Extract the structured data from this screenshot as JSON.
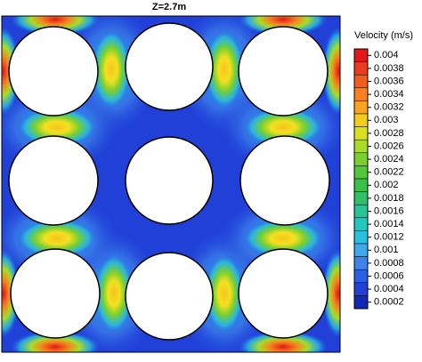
{
  "chart_data": {
    "type": "contour",
    "title": "Z=2.7m",
    "colorbar": {
      "label": "Velocity (m/s)",
      "lim": [
        0.0001,
        0.0041
      ],
      "ticks": [
        0.004,
        0.0038,
        0.0036,
        0.0034,
        0.0032,
        0.003,
        0.0028,
        0.0026,
        0.0024,
        0.0022,
        0.002,
        0.0018,
        0.0016,
        0.0014,
        0.0012,
        0.001,
        0.0008,
        0.0006,
        0.0004,
        0.0002
      ],
      "colors": [
        "#e01818",
        "#ec3a1c",
        "#f45c1e",
        "#f88020",
        "#f8a420",
        "#f4cc1c",
        "#d8e020",
        "#a8dc28",
        "#78d030",
        "#50c838",
        "#38c048",
        "#30c068",
        "#28c498",
        "#20c8c0",
        "#28c0e0",
        "#40a8ec",
        "#3c84ec",
        "#2c60e4",
        "#2040d8",
        "#1028b8"
      ]
    }
  }
}
